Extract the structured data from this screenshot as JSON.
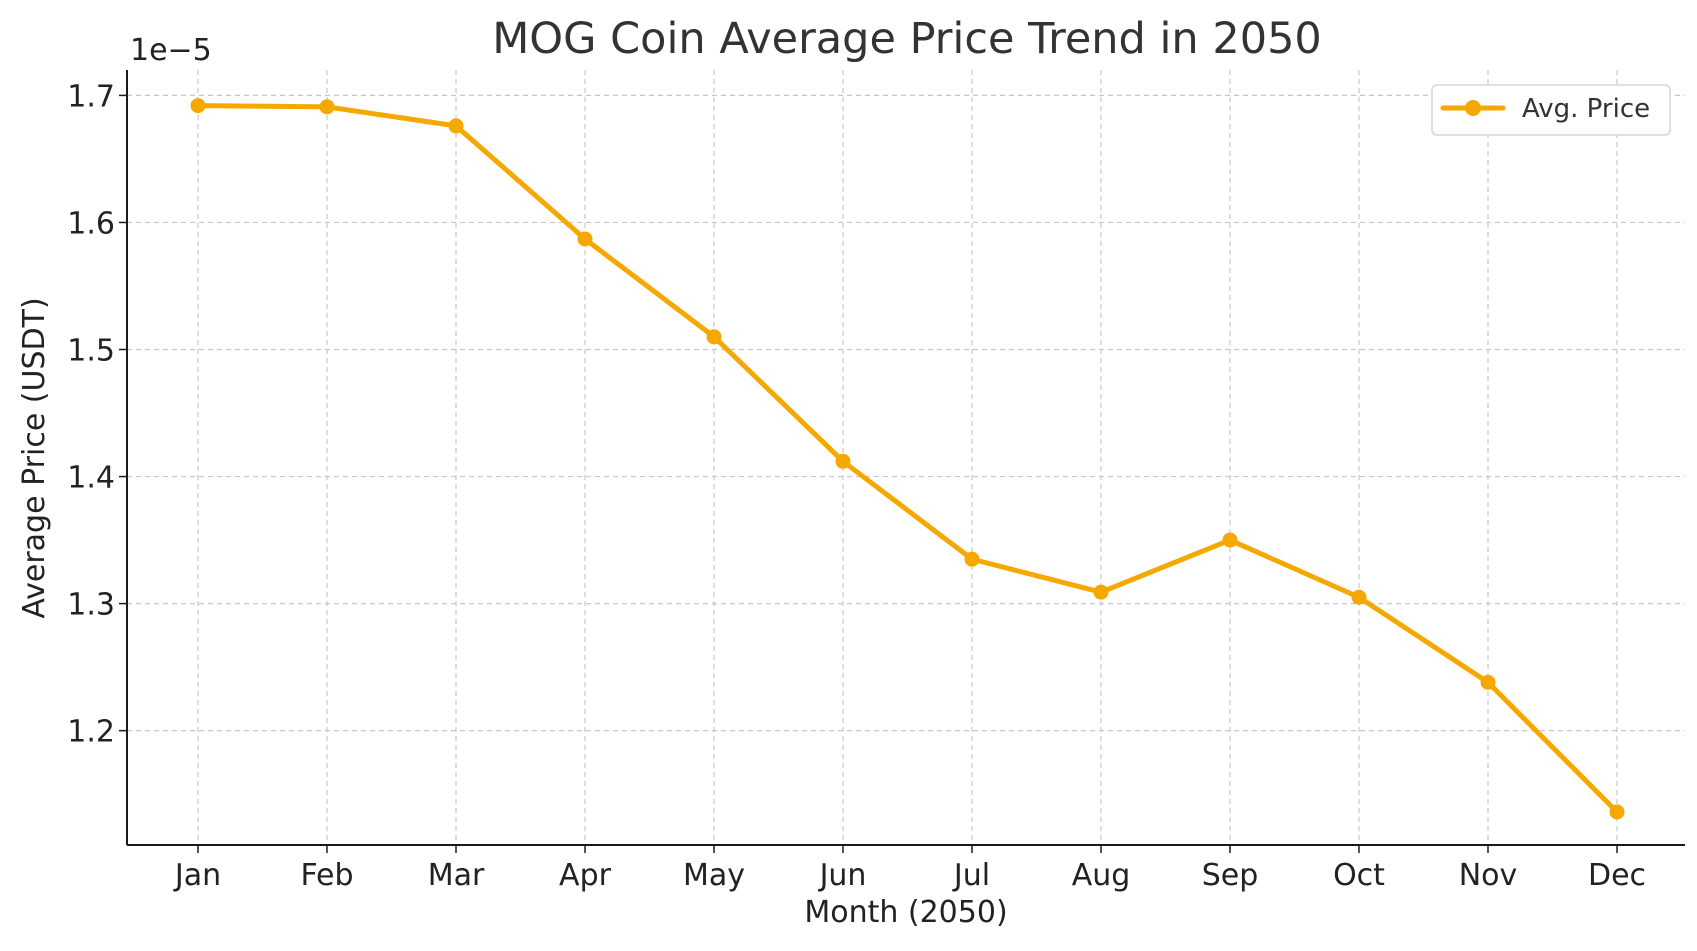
{
  "chart_data": {
    "type": "line",
    "title": "MOG Coin Average Price Trend in 2050",
    "xlabel": "Month (2050)",
    "ylabel": "Average Price (USDT)",
    "offset_label": "1e−5",
    "categories": [
      "Jan",
      "Feb",
      "Mar",
      "Apr",
      "May",
      "Jun",
      "Jul",
      "Aug",
      "Sep",
      "Oct",
      "Nov",
      "Dec"
    ],
    "series": [
      {
        "name": "Avg. Price",
        "color": "#f5a800",
        "values": [
          1.692,
          1.691,
          1.676,
          1.587,
          1.51,
          1.412,
          1.335,
          1.309,
          1.35,
          1.305,
          1.238,
          1.136
        ]
      }
    ],
    "value_scale": 1e-05,
    "yticks": [
      "1.2",
      "1.3",
      "1.4",
      "1.5",
      "1.6",
      "1.7"
    ],
    "ylim": [
      1.11,
      1.72
    ],
    "grid": true,
    "legend_position": "top-right"
  }
}
